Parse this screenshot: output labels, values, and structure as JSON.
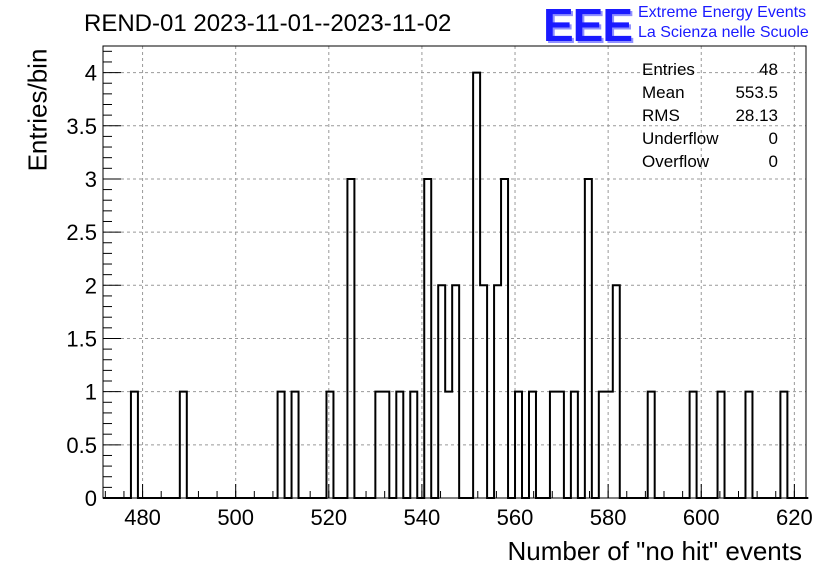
{
  "title": "REND-01 2023-11-01--2023-11-02",
  "logo": {
    "mark": "EEE",
    "line1": "Extreme Energy Events",
    "line2": "La Scienza nelle Scuole",
    "color": "#1a1aff"
  },
  "stats": [
    {
      "label": "Entries",
      "value": "48"
    },
    {
      "label": "Mean",
      "value": "553.5"
    },
    {
      "label": "RMS",
      "value": "28.13"
    },
    {
      "label": "Underflow",
      "value": "0"
    },
    {
      "label": "Overflow",
      "value": "0"
    }
  ],
  "chart_data": {
    "type": "histogram",
    "title": "REND-01 2023-11-01--2023-11-02",
    "xlabel": "Number of \"no hit\" events",
    "ylabel": "Entries/bin",
    "xlim": [
      471.5,
      622.5
    ],
    "ylim": [
      0,
      4.25
    ],
    "bin_width": 1.5,
    "grid": true,
    "x_ticks": [
      480,
      500,
      520,
      540,
      560,
      580,
      600,
      620
    ],
    "y_ticks": [
      0,
      0.5,
      1,
      1.5,
      2,
      2.5,
      3,
      3.5,
      4
    ],
    "y_tick_labels": [
      "0",
      "0.5",
      "1",
      "1.5",
      "2",
      "2.5",
      "3",
      "3.5",
      "4"
    ],
    "bins": [
      {
        "x": 477.75,
        "count": 1
      },
      {
        "x": 488.25,
        "count": 1
      },
      {
        "x": 509.25,
        "count": 1
      },
      {
        "x": 512.25,
        "count": 1
      },
      {
        "x": 519.75,
        "count": 1
      },
      {
        "x": 524.25,
        "count": 3
      },
      {
        "x": 530.25,
        "count": 1
      },
      {
        "x": 531.75,
        "count": 1
      },
      {
        "x": 534.75,
        "count": 1
      },
      {
        "x": 537.75,
        "count": 1
      },
      {
        "x": 540.75,
        "count": 3
      },
      {
        "x": 543.75,
        "count": 2
      },
      {
        "x": 545.25,
        "count": 1
      },
      {
        "x": 546.75,
        "count": 2
      },
      {
        "x": 551.25,
        "count": 4
      },
      {
        "x": 552.75,
        "count": 2
      },
      {
        "x": 555.75,
        "count": 2
      },
      {
        "x": 557.25,
        "count": 3
      },
      {
        "x": 560.25,
        "count": 1
      },
      {
        "x": 563.25,
        "count": 1
      },
      {
        "x": 567.75,
        "count": 1
      },
      {
        "x": 569.25,
        "count": 1
      },
      {
        "x": 572.25,
        "count": 1
      },
      {
        "x": 575.25,
        "count": 3
      },
      {
        "x": 578.25,
        "count": 1
      },
      {
        "x": 579.75,
        "count": 1
      },
      {
        "x": 581.25,
        "count": 2
      },
      {
        "x": 588.75,
        "count": 1
      },
      {
        "x": 597.75,
        "count": 1
      },
      {
        "x": 603.75,
        "count": 1
      },
      {
        "x": 609.75,
        "count": 1
      },
      {
        "x": 617.25,
        "count": 1
      }
    ]
  }
}
